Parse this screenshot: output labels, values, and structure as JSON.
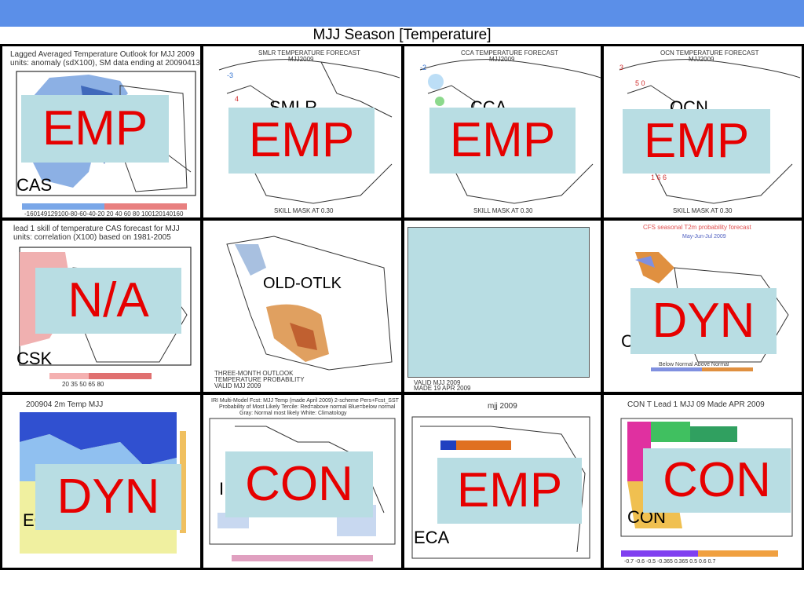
{
  "slide": {
    "title": "MJJ Season [Temperature]"
  },
  "panels": {
    "p1": {
      "header1": "Lagged Averaged Temperature Outlook for MJJ 2009",
      "header2": "units: anomaly (sdX100), SM data ending at 20090413",
      "label": "CAS",
      "tag": "EMP",
      "colorbar": "-160149129100-80-60-40-20 20  40  60  80 100120140160"
    },
    "p2": {
      "header1": "SMLR TEMPERATURE FORECAST",
      "header2": "MJJ2009",
      "label": "SMLR",
      "tag": "EMP",
      "footer": "SKILL MASK AT 0.30"
    },
    "p3": {
      "header1": "CCA TEMPERATURE FORECAST",
      "header2": "MJJ2009",
      "label": "CCA",
      "tag": "EMP",
      "footer": "SKILL MASK AT 0.30"
    },
    "p4": {
      "header1": "OCN TEMPERATURE FORECAST",
      "header2": "MJJ2009",
      "label": "OCN",
      "tag": "EMP",
      "footer": "SKILL MASK AT 0.30"
    },
    "p5": {
      "header1": "lead 1 skill of temperature CAS forecast for MJJ",
      "header2": "units: correlation (X100) based on 1981-2005",
      "label": "CSK",
      "tag": "N/A",
      "colorbar": "20    35    50    65    80"
    },
    "p6": {
      "label": "OLD-OTLK",
      "footer1": "THREE-MONTH OUTLOOK",
      "footer2": "TEMPERATURE PROBABILITY",
      "footer3": "VALID MJJ 2009"
    },
    "p7": {
      "footer1": "VALID MJJ 2009",
      "footer2": "MADE 19 APR 2009"
    },
    "p8": {
      "header1": "CFS seasonal T2m probability forecast",
      "header2": "May-Jun-Jul 2009",
      "label": "C",
      "tag": "DYN",
      "footer": "Below Normal                  Above Normal"
    },
    "p9": {
      "header1": "200904     2m Temp    MJJ",
      "label": "ECI",
      "tag": "DYN"
    },
    "p10": {
      "header1": "IRI Multi-Model Fcst: MJJ Temp (made April 2009)  2-scheme  Pers+Fcst_SST",
      "header2": "Probability of Most Likely Tercile: Red=above normal  Blue=below normal",
      "header3": "Gray: Normal most likely    White: Climatology",
      "label": "I",
      "tag": "CON"
    },
    "p11": {
      "header1": "mjj 2009",
      "label": "ECA",
      "tag": "EMP"
    },
    "p12": {
      "header1": "CON T Lead 1 MJJ 09 Made APR 2009",
      "label": "CON",
      "tag": "CON",
      "colorbar": "-0.7  -0.6  -0.5  -0.365  0.365  0.5   0.6   0.7"
    }
  }
}
